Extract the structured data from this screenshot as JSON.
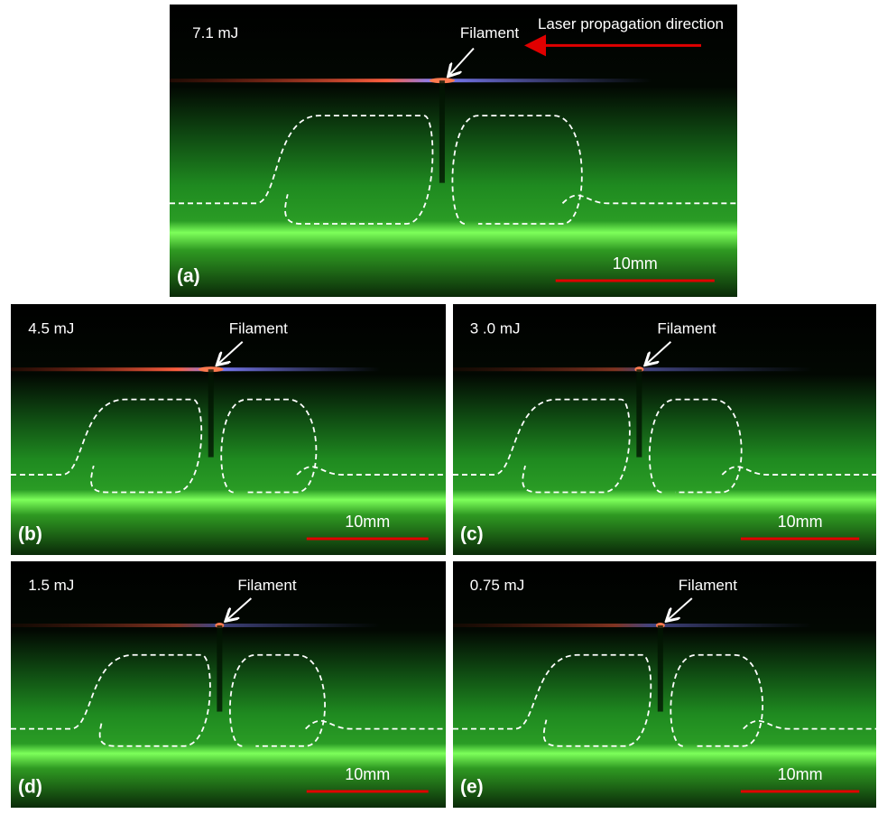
{
  "panels": [
    {
      "label": "(a)",
      "energy": "7.1 mJ",
      "filament": "Filament",
      "scale": "10mm",
      "direction": "Laser propagation direction"
    },
    {
      "label": "(b)",
      "energy": "4.5 mJ",
      "filament": "Filament",
      "scale": "10mm"
    },
    {
      "label": "(c)",
      "energy": "3 .0 mJ",
      "filament": "Filament",
      "scale": "10mm"
    },
    {
      "label": "(d)",
      "energy": "1.5 mJ",
      "filament": "Filament",
      "scale": "10mm"
    },
    {
      "label": "(e)",
      "energy": "0.75 mJ",
      "filament": "Filament",
      "scale": "10mm"
    }
  ]
}
